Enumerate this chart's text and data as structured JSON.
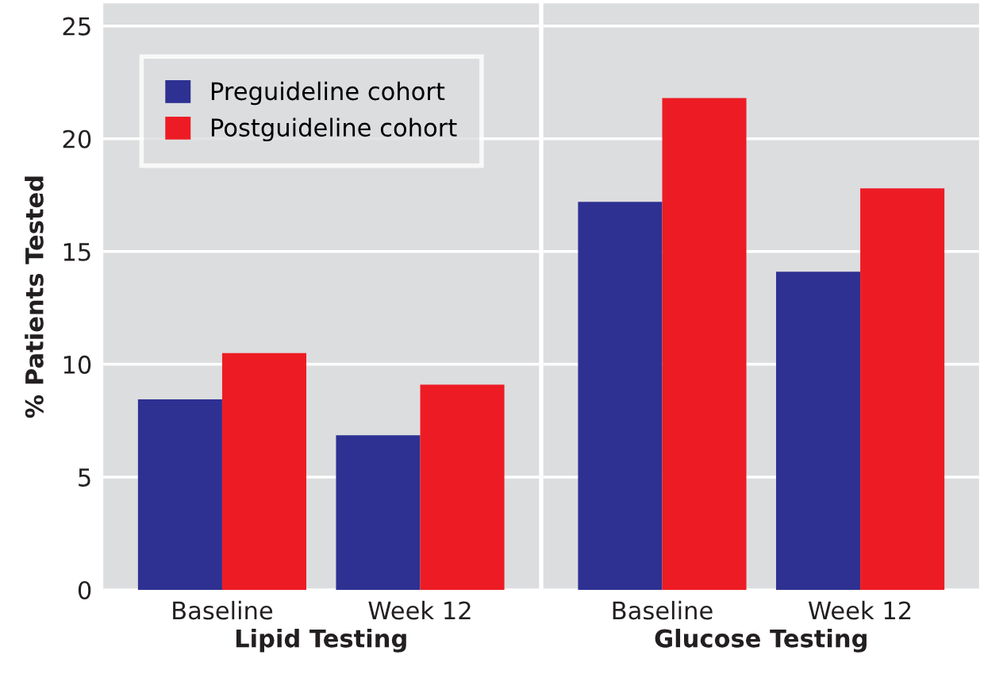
{
  "chart_data": [
    {
      "type": "bar",
      "xlabel": "Lipid Testing",
      "ylabel": "% Patients Tested",
      "categories": [
        "Baseline",
        "Week 12"
      ],
      "series": [
        {
          "name": "Preguideline cohort",
          "color": "#2e3192",
          "values": [
            8.45,
            6.85
          ]
        },
        {
          "name": "Postguideline cohort",
          "color": "#ed1c24",
          "values": [
            10.5,
            9.1
          ]
        }
      ],
      "ylim": [
        0,
        26
      ],
      "yticks": [
        0,
        5,
        10,
        15,
        20,
        25
      ],
      "grid": "y",
      "legend": "top left"
    },
    {
      "type": "bar",
      "xlabel": "Glucose Testing",
      "categories": [
        "Baseline",
        "Week 12"
      ],
      "series": [
        {
          "color": "#2e3192",
          "values": [
            17.2,
            14.1
          ]
        },
        {
          "color": "#ed1c24",
          "values": [
            21.8,
            17.8
          ]
        }
      ],
      "ylim": [
        0,
        26
      ],
      "yticks": [
        0,
        5,
        10,
        15,
        20,
        25
      ],
      "grid": "y",
      "tick_labels": "x"
    }
  ]
}
